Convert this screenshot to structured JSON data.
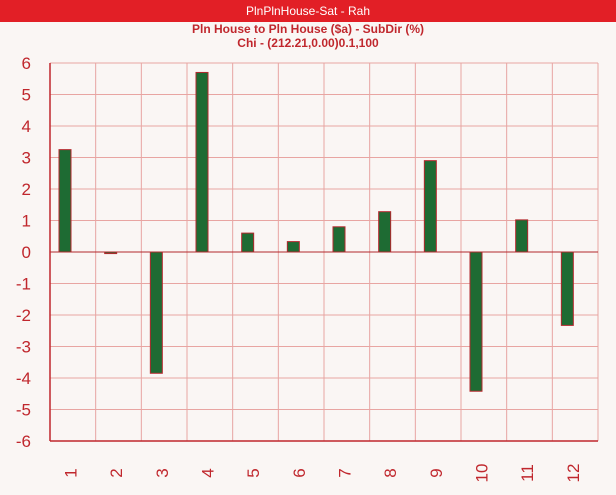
{
  "window": {
    "title": "PlnPlnHouse-Sat - Rah"
  },
  "colors": {
    "titlebar_bg": "#e21f26",
    "title_text": "#c0272d",
    "axis": "#c0272d",
    "grid": "#e8a5a2",
    "bar_fill": "#1e6b33",
    "bar_stroke": "#b3282d",
    "background": "#faf6f4"
  },
  "chart_data": {
    "type": "bar",
    "title": "Pln House to Pln House ($a) - SubDir (%)",
    "subtitle": "Chi - (212.21,0.00)0.1,100",
    "xlabel": "",
    "ylabel": "",
    "categories": [
      "1",
      "2",
      "3",
      "4",
      "5",
      "6",
      "7",
      "8",
      "9",
      "10",
      "11",
      "12"
    ],
    "values": [
      3.25,
      -0.05,
      -3.85,
      5.7,
      0.6,
      0.33,
      0.8,
      1.28,
      2.9,
      -4.42,
      1.02,
      -2.33
    ],
    "ylim": [
      -6,
      6
    ],
    "yticks": [
      "6",
      "5",
      "4",
      "3",
      "2",
      "1",
      "0",
      "-1",
      "-2",
      "-3",
      "-4",
      "-5",
      "-6"
    ],
    "grid": true,
    "legend": "none"
  }
}
